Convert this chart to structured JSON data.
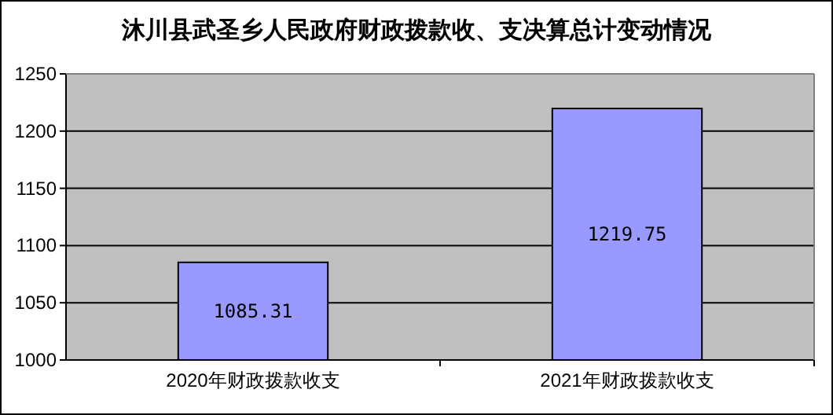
{
  "chart_data": {
    "type": "bar",
    "title": "沐川县武圣乡人民政府财政拨款收、支决算总计变动情况",
    "categories": [
      "2020年财政拨款收支",
      "2021年财政拨款收支"
    ],
    "values": [
      1085.31,
      1219.75
    ],
    "color": "#9999ff",
    "ylim": [
      1000,
      1250
    ],
    "yticks": [
      1000,
      1050,
      1100,
      1150,
      1200,
      1250
    ],
    "grid": "y",
    "data_labels": true
  }
}
